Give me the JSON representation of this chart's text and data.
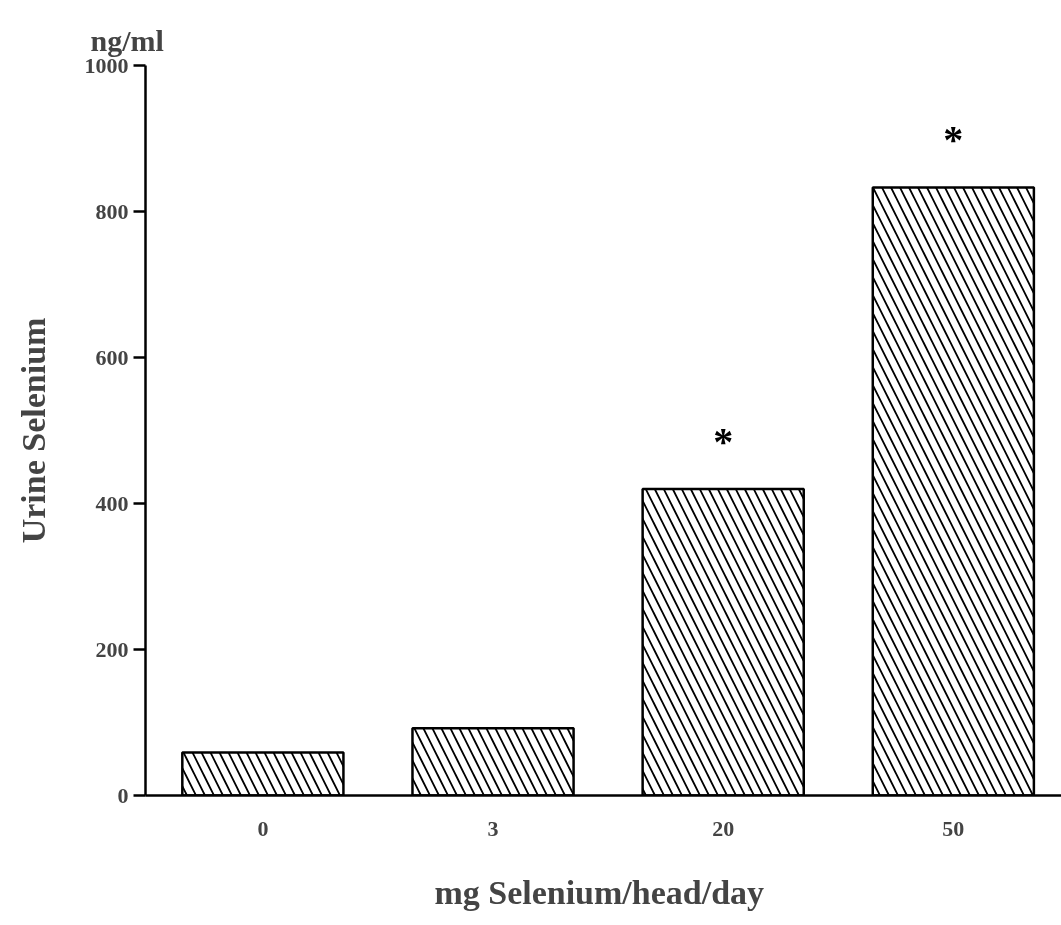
{
  "chart_data": {
    "type": "bar",
    "xlabel": "mg  Selenium/head/day",
    "ylabel": "Urine Selenium",
    "categories": [
      "0",
      "3",
      "20",
      "50"
    ],
    "series": [
      {
        "color": "#000000",
        "values": [
          59,
          92,
          420,
          833
        ]
      }
    ],
    "ylim": [
      0,
      1000
    ],
    "yticks": [
      0,
      200,
      400,
      600,
      800,
      1000
    ],
    "grid": false,
    "annotations": [
      "ng/ml",
      "*",
      "*"
    ]
  }
}
